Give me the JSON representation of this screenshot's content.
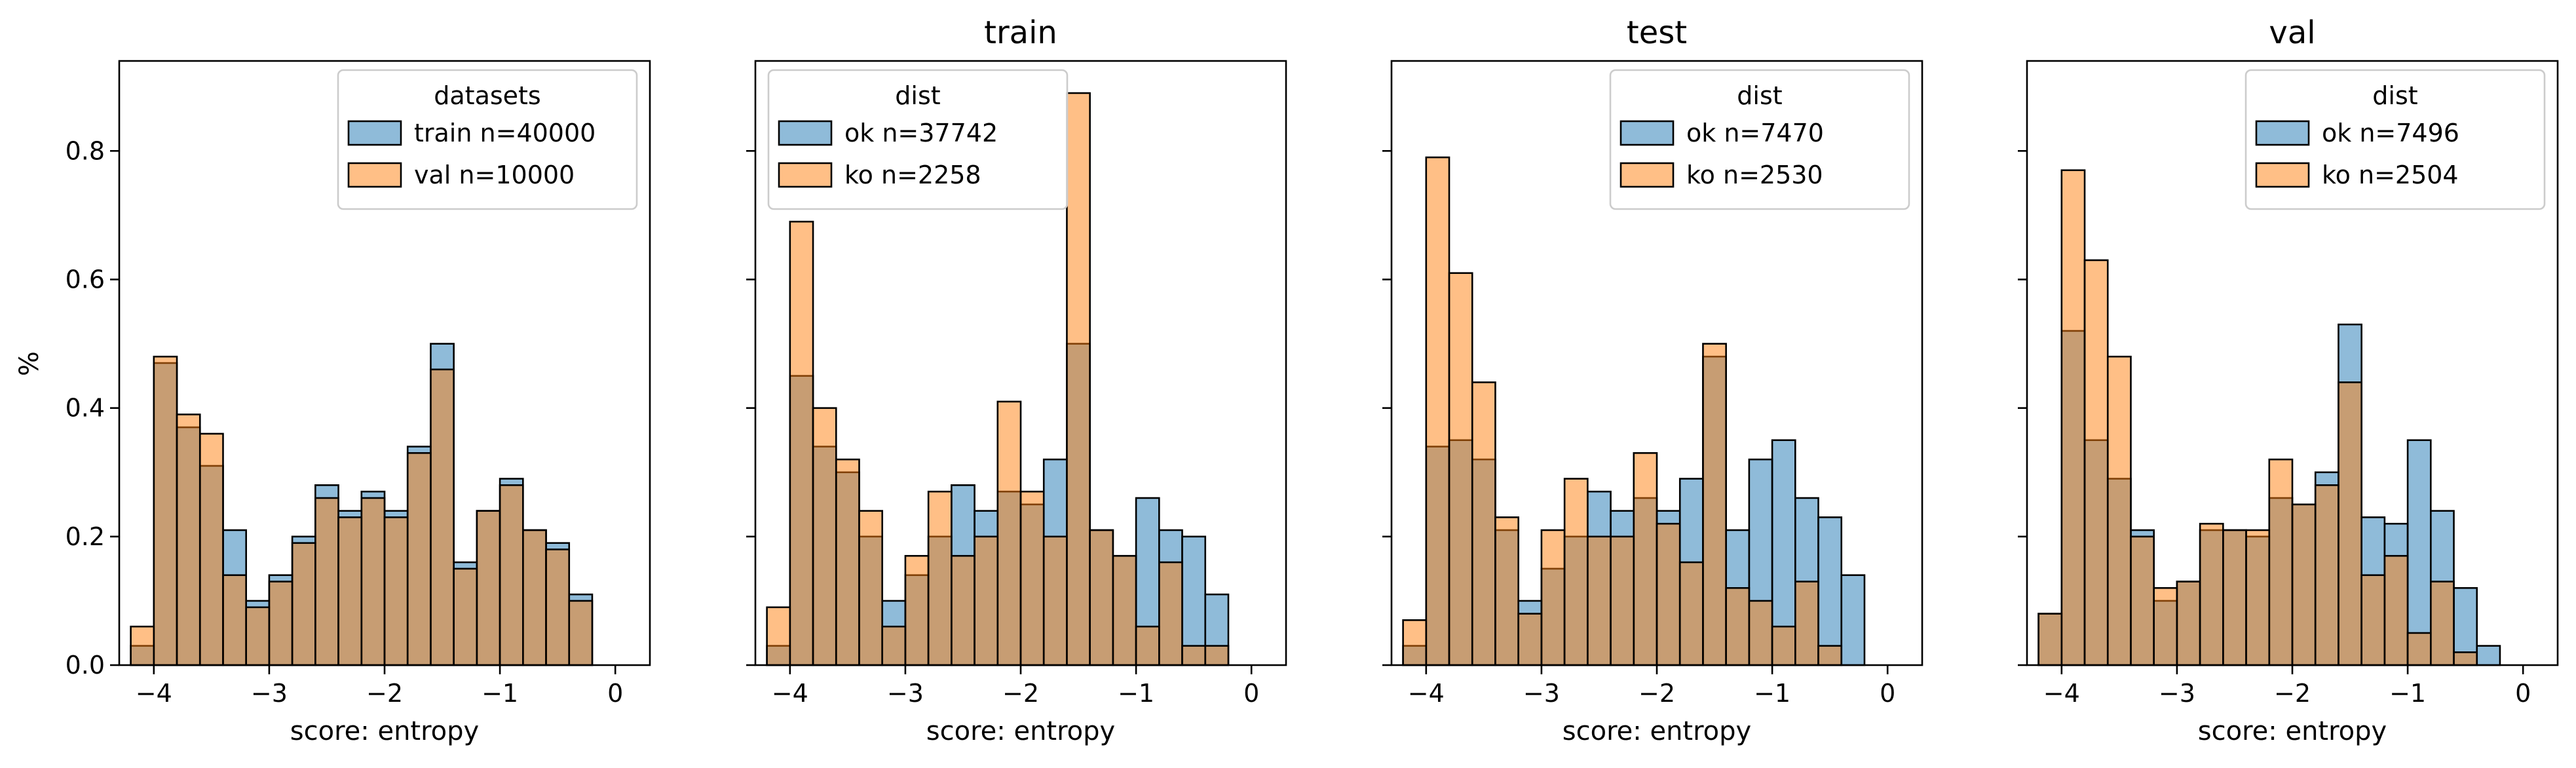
{
  "ylabel": "%",
  "xlabel": "score: entropy",
  "colors": {
    "blue": "#1f77b4",
    "orange": "#ff7f0e"
  },
  "xticks": [
    -4,
    -3,
    -2,
    -1,
    0
  ],
  "xtick_labels": [
    "−4",
    "−3",
    "−2",
    "−1",
    "0"
  ],
  "yticks": [
    0.0,
    0.2,
    0.4,
    0.6,
    0.8
  ],
  "ytick_labels": [
    "0.0",
    "0.2",
    "0.4",
    "0.6",
    "0.8"
  ],
  "chart_data": [
    {
      "type": "bar",
      "title": "",
      "xlabel": "score: entropy",
      "ylabel": "%",
      "xlim": [
        -4.3,
        0.3
      ],
      "ylim": [
        0,
        0.94
      ],
      "bin_edges": [
        -4.2,
        -4.0,
        -3.8,
        -3.6,
        -3.4,
        -3.2,
        -3.0,
        -2.8,
        -2.6,
        -2.4,
        -2.2,
        -2.0,
        -1.8,
        -1.6,
        -1.4,
        -1.2,
        -1.0,
        -0.8,
        -0.6,
        -0.4,
        -0.2,
        0.0
      ],
      "legend": {
        "title": "datasets",
        "position": "top-right"
      },
      "series": [
        {
          "name": "train n=40000",
          "color": "#1f77b4",
          "values": [
            0.03,
            0.47,
            0.37,
            0.31,
            0.21,
            0.1,
            0.14,
            0.2,
            0.28,
            0.24,
            0.27,
            0.24,
            0.34,
            0.5,
            0.16,
            0.24,
            0.29,
            0.21,
            0.19,
            0.11
          ]
        },
        {
          "name": "val n=10000",
          "color": "#ff7f0e",
          "values": [
            0.06,
            0.48,
            0.39,
            0.36,
            0.14,
            0.09,
            0.13,
            0.19,
            0.26,
            0.23,
            0.26,
            0.23,
            0.33,
            0.46,
            0.15,
            0.24,
            0.28,
            0.21,
            0.18,
            0.1
          ]
        }
      ]
    },
    {
      "type": "bar",
      "title": "train",
      "xlabel": "score: entropy",
      "ylabel": "",
      "xlim": [
        -4.3,
        0.3
      ],
      "ylim": [
        0,
        0.94
      ],
      "bin_edges": [
        -4.2,
        -4.0,
        -3.8,
        -3.6,
        -3.4,
        -3.2,
        -3.0,
        -2.8,
        -2.6,
        -2.4,
        -2.2,
        -2.0,
        -1.8,
        -1.6,
        -1.4,
        -1.2,
        -1.0,
        -0.8,
        -0.6,
        -0.4,
        -0.2,
        0.0
      ],
      "legend": {
        "title": "dist",
        "position": "top-left"
      },
      "series": [
        {
          "name": "ok n=37742",
          "color": "#1f77b4",
          "values": [
            0.03,
            0.45,
            0.34,
            0.3,
            0.2,
            0.1,
            0.14,
            0.2,
            0.28,
            0.24,
            0.27,
            0.25,
            0.32,
            0.5,
            0.21,
            0.17,
            0.26,
            0.21,
            0.2,
            0.11
          ]
        },
        {
          "name": "ko n=2258",
          "color": "#ff7f0e",
          "values": [
            0.09,
            0.69,
            0.4,
            0.32,
            0.24,
            0.06,
            0.17,
            0.27,
            0.17,
            0.2,
            0.41,
            0.27,
            0.2,
            0.89,
            0.21,
            0.17,
            0.06,
            0.16,
            0.03,
            0.03
          ]
        }
      ]
    },
    {
      "type": "bar",
      "title": "test",
      "xlabel": "score: entropy",
      "ylabel": "",
      "xlim": [
        -4.3,
        0.3
      ],
      "ylim": [
        0,
        0.94
      ],
      "bin_edges": [
        -4.2,
        -4.0,
        -3.8,
        -3.6,
        -3.4,
        -3.2,
        -3.0,
        -2.8,
        -2.6,
        -2.4,
        -2.2,
        -2.0,
        -1.8,
        -1.6,
        -1.4,
        -1.2,
        -1.0,
        -0.8,
        -0.6,
        -0.4,
        -0.2,
        0.0
      ],
      "legend": {
        "title": "dist",
        "position": "top-right"
      },
      "series": [
        {
          "name": "ok n=7470",
          "color": "#1f77b4",
          "values": [
            0.03,
            0.34,
            0.35,
            0.32,
            0.21,
            0.1,
            0.15,
            0.2,
            0.27,
            0.24,
            0.26,
            0.24,
            0.29,
            0.48,
            0.21,
            0.32,
            0.35,
            0.26,
            0.23,
            0.14
          ]
        },
        {
          "name": "ko n=2530",
          "color": "#ff7f0e",
          "values": [
            0.07,
            0.79,
            0.61,
            0.44,
            0.23,
            0.08,
            0.21,
            0.29,
            0.2,
            0.2,
            0.33,
            0.22,
            0.16,
            0.5,
            0.12,
            0.1,
            0.06,
            0.13,
            0.03,
            0.0
          ]
        }
      ]
    },
    {
      "type": "bar",
      "title": "val",
      "xlabel": "score: entropy",
      "ylabel": "",
      "xlim": [
        -4.3,
        0.3
      ],
      "ylim": [
        0,
        0.94
      ],
      "bin_edges": [
        -4.2,
        -4.0,
        -3.8,
        -3.6,
        -3.4,
        -3.2,
        -3.0,
        -2.8,
        -2.6,
        -2.4,
        -2.2,
        -2.0,
        -1.8,
        -1.6,
        -1.4,
        -1.2,
        -1.0,
        -0.8,
        -0.6,
        -0.4,
        -0.2,
        0.0
      ],
      "legend": {
        "title": "dist",
        "position": "top-right"
      },
      "series": [
        {
          "name": "ok n=7496",
          "color": "#1f77b4",
          "values": [
            0.08,
            0.52,
            0.35,
            0.29,
            0.21,
            0.1,
            0.13,
            0.21,
            0.21,
            0.2,
            0.26,
            0.25,
            0.3,
            0.53,
            0.23,
            0.22,
            0.35,
            0.24,
            0.12,
            0.03
          ]
        },
        {
          "name": "ko n=2504",
          "color": "#ff7f0e",
          "values": [
            0.08,
            0.77,
            0.63,
            0.48,
            0.2,
            0.12,
            0.13,
            0.22,
            0.21,
            0.21,
            0.32,
            0.25,
            0.28,
            0.44,
            0.14,
            0.17,
            0.05,
            0.13,
            0.02,
            0.0
          ]
        }
      ]
    }
  ]
}
